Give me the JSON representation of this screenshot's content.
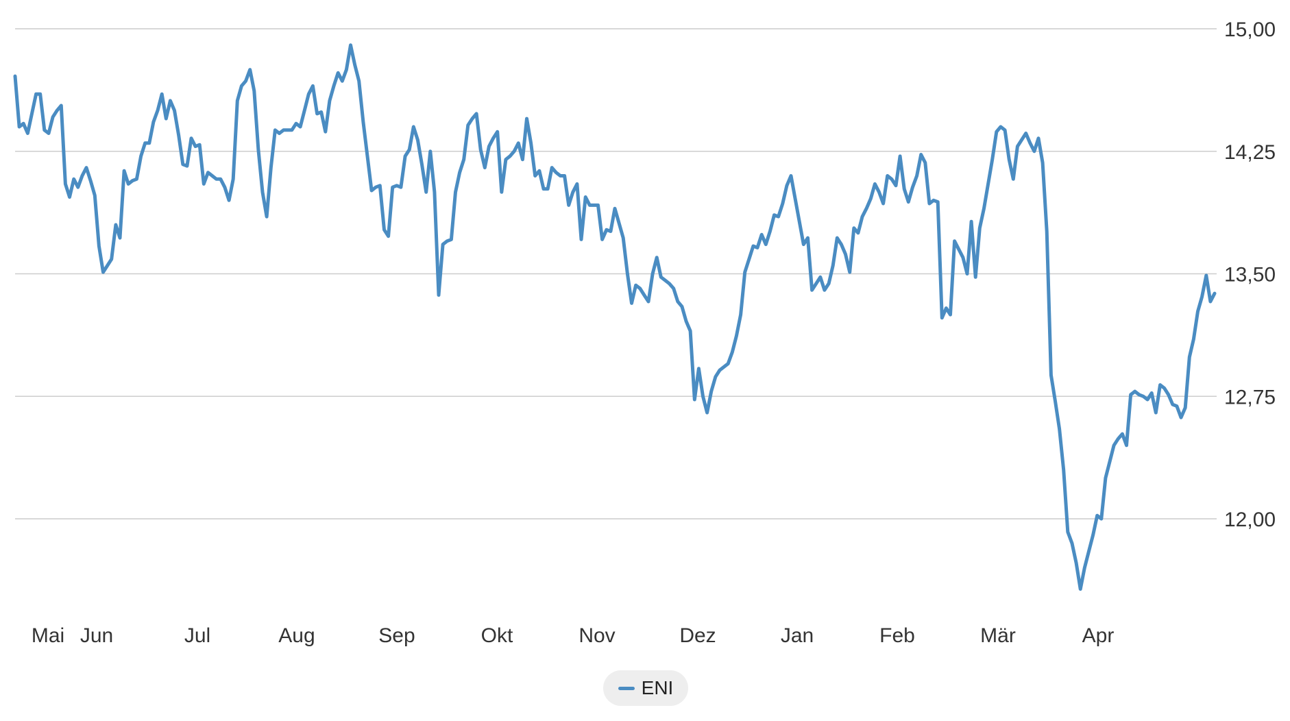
{
  "chart_data": {
    "type": "line",
    "y_axis": {
      "position": "right",
      "ylim": [
        11.55,
        15.0
      ],
      "ticks": [
        "15,00",
        "14,25",
        "13,50",
        "12,75",
        "12,00"
      ],
      "tick_values": [
        15.0,
        14.25,
        13.5,
        12.75,
        12.0
      ]
    },
    "x_axis": {
      "ticks": [
        "Mai",
        "Jun",
        "Jul",
        "Aug",
        "Sep",
        "Okt",
        "Nov",
        "Dez",
        "Jan",
        "Feb",
        "Mär",
        "Apr"
      ]
    },
    "grid": true,
    "legend": {
      "placement": "bottom-center",
      "entries": [
        "ENI"
      ]
    },
    "color": "#4a8cc2",
    "series": [
      {
        "name": "ENI",
        "x_start_month": "Mai",
        "values": [
          14.71,
          14.4,
          14.42,
          14.36,
          14.48,
          14.6,
          14.6,
          14.38,
          14.36,
          14.46,
          14.5,
          14.53,
          14.05,
          13.97,
          14.08,
          14.03,
          14.1,
          14.15,
          14.07,
          13.98,
          13.67,
          13.51,
          13.55,
          13.59,
          13.8,
          13.72,
          14.13,
          14.05,
          14.07,
          14.08,
          14.22,
          14.3,
          14.3,
          14.43,
          14.5,
          14.6,
          14.45,
          14.56,
          14.5,
          14.35,
          14.17,
          14.16,
          14.33,
          14.28,
          14.29,
          14.05,
          14.12,
          14.1,
          14.08,
          14.08,
          14.03,
          13.95,
          14.08,
          14.56,
          14.65,
          14.68,
          14.75,
          14.62,
          14.26,
          14.0,
          13.85,
          14.15,
          14.38,
          14.36,
          14.38,
          14.38,
          14.38,
          14.42,
          14.4,
          14.5,
          14.6,
          14.65,
          14.48,
          14.49,
          14.37,
          14.56,
          14.65,
          14.73,
          14.68,
          14.75,
          14.9,
          14.78,
          14.68,
          14.43,
          14.22,
          14.01,
          14.03,
          14.04,
          13.77,
          13.73,
          14.03,
          14.04,
          14.03,
          14.22,
          14.26,
          14.4,
          14.32,
          14.17,
          14.0,
          14.25,
          14.0,
          13.37,
          13.68,
          13.7,
          13.71,
          14.0,
          14.12,
          14.2,
          14.41,
          14.45,
          14.48,
          14.26,
          14.15,
          14.28,
          14.33,
          14.37,
          14.0,
          14.2,
          14.22,
          14.25,
          14.3,
          14.2,
          14.45,
          14.3,
          14.1,
          14.13,
          14.02,
          14.02,
          14.15,
          14.12,
          14.1,
          14.1,
          13.92,
          14.0,
          14.05,
          13.71,
          13.97,
          13.92,
          13.92,
          13.92,
          13.71,
          13.77,
          13.76,
          13.9,
          13.81,
          13.72,
          13.5,
          13.32,
          13.43,
          13.41,
          13.37,
          13.33,
          13.5,
          13.6,
          13.48,
          13.46,
          13.44,
          13.41,
          13.33,
          13.3,
          13.21,
          13.15,
          12.73,
          12.92,
          12.75,
          12.65,
          12.78,
          12.87,
          12.91,
          12.93,
          12.95,
          13.02,
          13.12,
          13.25,
          13.51,
          13.59,
          13.67,
          13.66,
          13.74,
          13.68,
          13.76,
          13.86,
          13.85,
          13.93,
          14.04,
          14.1,
          13.96,
          13.82,
          13.68,
          13.72,
          13.4,
          13.44,
          13.48,
          13.4,
          13.44,
          13.55,
          13.72,
          13.68,
          13.62,
          13.51,
          13.78,
          13.75,
          13.85,
          13.9,
          13.96,
          14.05,
          14.0,
          13.93,
          14.1,
          14.08,
          14.04,
          14.22,
          14.02,
          13.94,
          14.03,
          14.1,
          14.23,
          14.18,
          13.93,
          13.95,
          13.94,
          13.23,
          13.29,
          13.25,
          13.7,
          13.65,
          13.6,
          13.5,
          13.82,
          13.48,
          13.78,
          13.9,
          14.05,
          14.2,
          14.37,
          14.4,
          14.38,
          14.2,
          14.08,
          14.28,
          14.32,
          14.36,
          14.3,
          14.25,
          14.33,
          14.18,
          13.76,
          12.88,
          12.72,
          12.55,
          12.3,
          11.92,
          11.85,
          11.73,
          11.57,
          11.7,
          11.8,
          11.9,
          12.02,
          12.0,
          12.25,
          12.35,
          12.45,
          12.49,
          12.52,
          12.45,
          12.76,
          12.78,
          12.76,
          12.75,
          12.73,
          12.77,
          12.65,
          12.82,
          12.8,
          12.76,
          12.7,
          12.69,
          12.62,
          12.68,
          12.99,
          13.1,
          13.27,
          13.36,
          13.49,
          13.33,
          13.38
        ]
      }
    ]
  }
}
